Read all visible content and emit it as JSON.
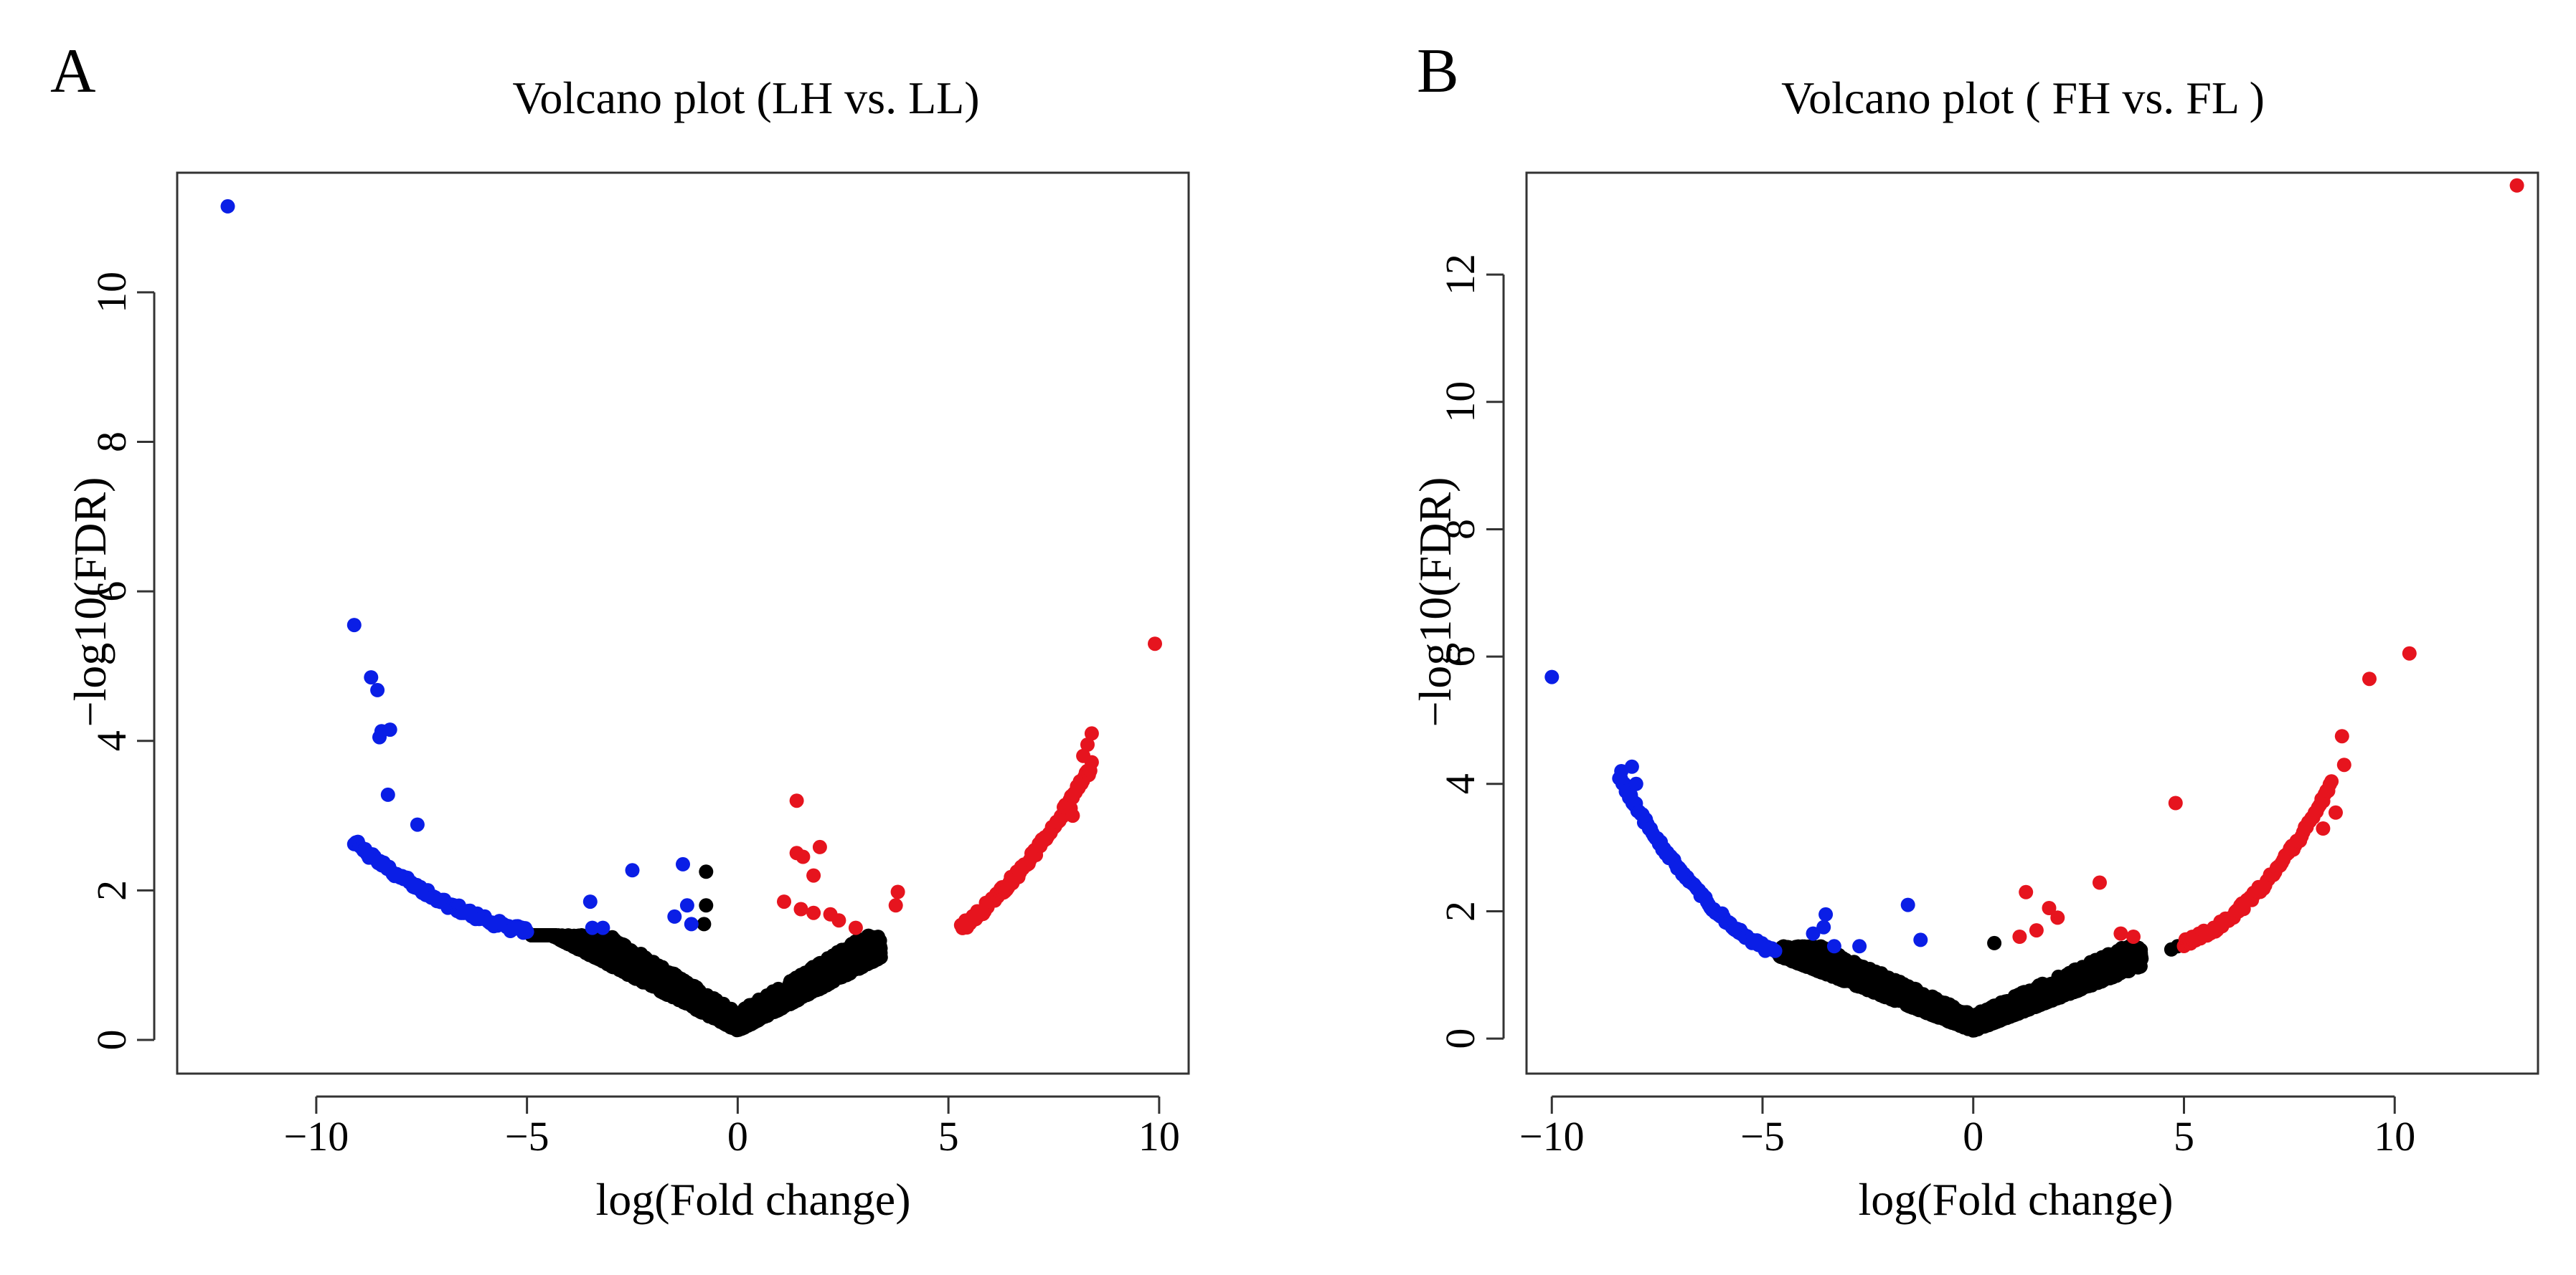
{
  "figure": {
    "panels": [
      "A",
      "B"
    ]
  },
  "colors": {
    "down": "#0a1ee6",
    "up": "#e6141e",
    "not_significant": "#000000",
    "frame": "#333333"
  },
  "chart_data": [
    {
      "type": "scatter",
      "panel": "A",
      "title": "Volcano plot (LH vs. LL)",
      "xlabel": "log(Fold change)",
      "ylabel": "−log10(FDR)",
      "xlim": [
        -13.3,
        10.7
      ],
      "ylim": [
        -0.45,
        11.6
      ],
      "xticks": [
        -10,
        -5,
        0,
        5,
        10
      ],
      "xtick_labels": [
        "−10",
        "−5",
        "0",
        "5",
        "10"
      ],
      "yticks": [
        0,
        2,
        4,
        6,
        8,
        10
      ],
      "ytick_labels": [
        "0",
        "2",
        "4",
        "6",
        "8",
        "10"
      ],
      "grid": false,
      "legend": "none",
      "series": [
        {
          "color_key": "down",
          "arms": [
            {
              "from": -9.1,
              "to": -5.0,
              "n": 95,
              "curve": "0.043*(|x|-5)^2 + 0.115*(|x|-5) + 1.45",
              "jitter": 0.1
            }
          ],
          "points": [
            {
              "x": -12.1,
              "y": 11.15
            },
            {
              "x": -9.1,
              "y": 5.55
            },
            {
              "x": -8.7,
              "y": 4.85
            },
            {
              "x": -8.55,
              "y": 4.68
            },
            {
              "x": -8.45,
              "y": 4.13
            },
            {
              "x": -8.25,
              "y": 4.15
            },
            {
              "x": -8.5,
              "y": 4.05
            },
            {
              "x": -8.3,
              "y": 3.28
            },
            {
              "x": -7.6,
              "y": 2.88
            },
            {
              "x": -3.5,
              "y": 1.85
            },
            {
              "x": -3.45,
              "y": 1.5
            },
            {
              "x": -3.2,
              "y": 1.5
            },
            {
              "x": -2.5,
              "y": 2.27
            },
            {
              "x": -1.3,
              "y": 2.35
            },
            {
              "x": -1.2,
              "y": 1.8
            },
            {
              "x": -1.5,
              "y": 1.65
            },
            {
              "x": -1.1,
              "y": 1.55
            }
          ]
        },
        {
          "color_key": "up",
          "arms": [
            {
              "from": 5.3,
              "to": 8.4,
              "n": 90,
              "curve": "0.09*(x-5.3)^2 + 0.42*(x-5.3) + 1.5",
              "jitter": 0.12
            }
          ],
          "points": [
            {
              "x": 9.9,
              "y": 5.3
            },
            {
              "x": 8.4,
              "y": 4.1
            },
            {
              "x": 8.3,
              "y": 3.95
            },
            {
              "x": 8.2,
              "y": 3.8
            },
            {
              "x": 7.9,
              "y": 3.1
            },
            {
              "x": 7.95,
              "y": 3.0
            },
            {
              "x": 1.4,
              "y": 3.2
            },
            {
              "x": 1.4,
              "y": 2.5
            },
            {
              "x": 1.55,
              "y": 2.45
            },
            {
              "x": 1.95,
              "y": 2.58
            },
            {
              "x": 1.8,
              "y": 2.2
            },
            {
              "x": 1.1,
              "y": 1.85
            },
            {
              "x": 1.5,
              "y": 1.75
            },
            {
              "x": 2.2,
              "y": 1.68
            },
            {
              "x": 2.4,
              "y": 1.6
            },
            {
              "x": 2.8,
              "y": 1.5
            },
            {
              "x": 3.8,
              "y": 1.98
            },
            {
              "x": 3.75,
              "y": 1.8
            },
            {
              "x": 1.8,
              "y": 1.7
            }
          ]
        },
        {
          "color_key": "not_significant",
          "cloud": {
            "x_min": -4.9,
            "x_max": 3.4,
            "n": 1800,
            "floor": 0.12,
            "slope": 0.34,
            "max_y": 1.4,
            "seed": 11
          },
          "points": [
            {
              "x": -5.0,
              "y": 1.45
            },
            {
              "x": -0.75,
              "y": 2.25
            },
            {
              "x": -0.75,
              "y": 1.8
            },
            {
              "x": -0.8,
              "y": 1.55
            },
            {
              "x": 3.3,
              "y": 1.3
            }
          ]
        }
      ]
    },
    {
      "type": "scatter",
      "panel": "B",
      "title": "Volcano plot ( FH vs. FL )",
      "xlabel": "log(Fold change)",
      "ylabel": "−log10(FDR)",
      "xlim": [
        -10.6,
        13.4
      ],
      "ylim": [
        -0.55,
        13.6
      ],
      "xticks": [
        -10,
        -5,
        0,
        5,
        10
      ],
      "xtick_labels": [
        "−10",
        "−5",
        "0",
        "5",
        "10"
      ],
      "yticks": [
        0,
        2,
        4,
        6,
        8,
        10,
        12
      ],
      "ytick_labels": [
        "0",
        "2",
        "4",
        "6",
        "8",
        "10",
        "12"
      ],
      "grid": false,
      "legend": "none",
      "series": [
        {
          "color_key": "down",
          "arms": [
            {
              "from": -8.4,
              "to": -4.7,
              "n": 95,
              "curve": "0.12*(|x|-4.7)^2 + 0.3*(|x|-4.7) + 1.35",
              "jitter": 0.1
            }
          ],
          "points": [
            {
              "x": -10.0,
              "y": 5.68
            },
            {
              "x": -8.1,
              "y": 4.27
            },
            {
              "x": -8.35,
              "y": 4.2
            },
            {
              "x": -8.0,
              "y": 4.0
            },
            {
              "x": -8.1,
              "y": 3.75
            },
            {
              "x": -3.5,
              "y": 1.95
            },
            {
              "x": -3.55,
              "y": 1.75
            },
            {
              "x": -3.8,
              "y": 1.65
            },
            {
              "x": -3.3,
              "y": 1.45
            },
            {
              "x": -2.7,
              "y": 1.45
            },
            {
              "x": -1.55,
              "y": 2.1
            },
            {
              "x": -1.25,
              "y": 1.55
            }
          ]
        },
        {
          "color_key": "up",
          "arms": [
            {
              "from": 5.0,
              "to": 8.5,
              "n": 90,
              "curve": "0.14*(x-5)^2 + 0.22*(x-5) + 1.5",
              "jitter": 0.12
            }
          ],
          "points": [
            {
              "x": 12.9,
              "y": 13.4
            },
            {
              "x": 10.35,
              "y": 6.05
            },
            {
              "x": 9.4,
              "y": 5.65
            },
            {
              "x": 8.75,
              "y": 4.75
            },
            {
              "x": 8.8,
              "y": 4.3
            },
            {
              "x": 8.6,
              "y": 3.55
            },
            {
              "x": 8.3,
              "y": 3.3
            },
            {
              "x": 4.8,
              "y": 3.7
            },
            {
              "x": 3.0,
              "y": 2.45
            },
            {
              "x": 1.25,
              "y": 2.3
            },
            {
              "x": 1.8,
              "y": 2.05
            },
            {
              "x": 2.0,
              "y": 1.9
            },
            {
              "x": 1.5,
              "y": 1.7
            },
            {
              "x": 1.1,
              "y": 1.6
            },
            {
              "x": 3.5,
              "y": 1.65
            },
            {
              "x": 3.8,
              "y": 1.6
            },
            {
              "x": 5.2,
              "y": 1.55
            }
          ]
        },
        {
          "color_key": "not_significant",
          "cloud": {
            "x_min": -4.6,
            "x_max": 4.0,
            "n": 1800,
            "floor": 0.12,
            "slope": 0.3,
            "max_y": 1.45,
            "seed": 23
          },
          "points": [
            {
              "x": -4.65,
              "y": 1.35
            },
            {
              "x": 4.7,
              "y": 1.4
            },
            {
              "x": 4.85,
              "y": 1.45
            },
            {
              "x": 0.5,
              "y": 1.5
            }
          ]
        }
      ]
    }
  ]
}
